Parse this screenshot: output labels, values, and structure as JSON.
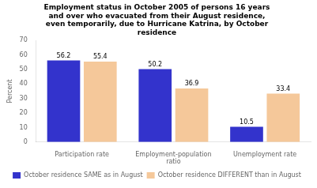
{
  "chart_data": {
    "type": "bar",
    "title": "Employment status in October 2005 of persons 16 years\nand over who evacuated from their August residence,\neven temporarily, due to Hurricane Katrina, by October\nresidence",
    "ylabel": "Percent",
    "categories": [
      "Participation rate",
      "Employment-population\nratio",
      "Unemployment rate"
    ],
    "series": [
      {
        "name": "October residence SAME as in August",
        "color": "#3333cc",
        "values": [
          56.2,
          50.2,
          10.5
        ]
      },
      {
        "name": "October residence DIFFERENT than in August",
        "color": "#f5c89a",
        "values": [
          55.4,
          36.9,
          33.4
        ]
      }
    ],
    "ylim": [
      0,
      70
    ],
    "yticks": [
      0,
      10,
      20,
      30,
      40,
      50,
      60,
      70
    ],
    "grid": false,
    "legend": "bottom",
    "data_labels": true
  }
}
